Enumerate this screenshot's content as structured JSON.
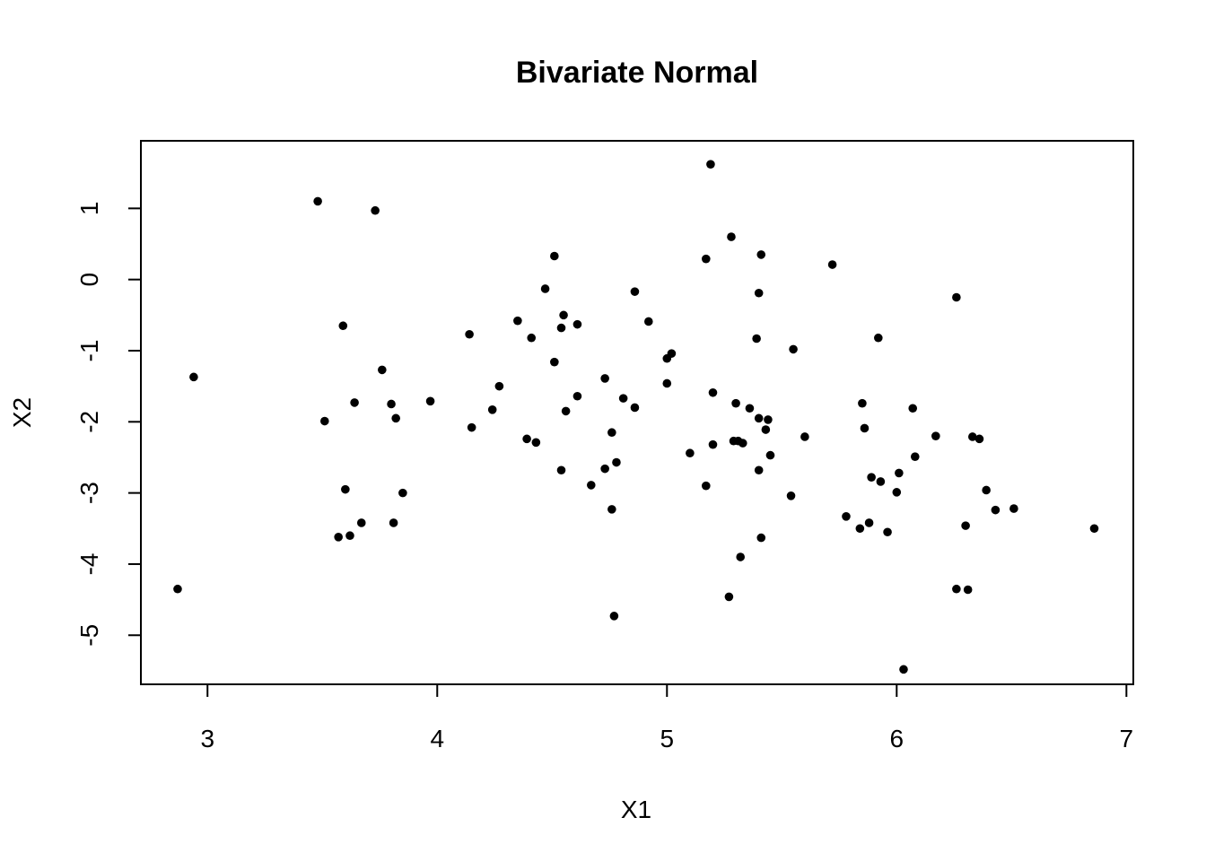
{
  "chart_data": {
    "type": "scatter",
    "title": "Bivariate Normal",
    "xlabel": "X1",
    "ylabel": "X2",
    "xlim": [
      2.71,
      7.03
    ],
    "ylim": [
      -5.69,
      1.95
    ],
    "x_ticks": [
      3,
      4,
      5,
      6,
      7
    ],
    "y_ticks": [
      1,
      0,
      -1,
      -2,
      -3,
      -4,
      -5
    ],
    "grid": false,
    "legend": "none",
    "marker_color": "#000000",
    "points": [
      [
        2.87,
        -4.35
      ],
      [
        2.94,
        -1.37
      ],
      [
        3.48,
        1.1
      ],
      [
        3.51,
        -1.99
      ],
      [
        3.57,
        -3.62
      ],
      [
        3.59,
        -0.65
      ],
      [
        3.6,
        -2.95
      ],
      [
        3.62,
        -3.6
      ],
      [
        3.64,
        -1.73
      ],
      [
        3.67,
        -3.42
      ],
      [
        3.73,
        0.97
      ],
      [
        3.76,
        -1.27
      ],
      [
        3.8,
        -1.75
      ],
      [
        3.81,
        -3.42
      ],
      [
        3.82,
        -1.95
      ],
      [
        3.85,
        -3.0
      ],
      [
        3.97,
        -1.71
      ],
      [
        4.14,
        -0.77
      ],
      [
        4.15,
        -2.08
      ],
      [
        4.24,
        -1.83
      ],
      [
        4.27,
        -1.5
      ],
      [
        4.35,
        -0.58
      ],
      [
        4.39,
        -2.24
      ],
      [
        4.41,
        -0.82
      ],
      [
        4.43,
        -2.29
      ],
      [
        4.47,
        -0.13
      ],
      [
        4.51,
        0.33
      ],
      [
        4.51,
        -1.16
      ],
      [
        4.54,
        -2.68
      ],
      [
        4.54,
        -0.68
      ],
      [
        4.55,
        -0.5
      ],
      [
        4.56,
        -1.85
      ],
      [
        4.61,
        -1.64
      ],
      [
        4.61,
        -0.63
      ],
      [
        4.67,
        -2.89
      ],
      [
        4.73,
        -1.39
      ],
      [
        4.73,
        -2.66
      ],
      [
        4.76,
        -2.15
      ],
      [
        4.76,
        -3.23
      ],
      [
        4.77,
        -4.73
      ],
      [
        4.78,
        -2.57
      ],
      [
        4.81,
        -1.67
      ],
      [
        4.86,
        -0.17
      ],
      [
        4.86,
        -1.8
      ],
      [
        4.92,
        -0.59
      ],
      [
        5.0,
        -1.11
      ],
      [
        5.0,
        -1.46
      ],
      [
        5.02,
        -1.04
      ],
      [
        5.1,
        -2.44
      ],
      [
        5.17,
        0.29
      ],
      [
        5.17,
        -2.9
      ],
      [
        5.19,
        1.62
      ],
      [
        5.2,
        -1.59
      ],
      [
        5.2,
        -2.32
      ],
      [
        5.27,
        -4.46
      ],
      [
        5.28,
        0.6
      ],
      [
        5.29,
        -2.27
      ],
      [
        5.3,
        -1.74
      ],
      [
        5.31,
        -2.27
      ],
      [
        5.32,
        -3.9
      ],
      [
        5.33,
        -2.3
      ],
      [
        5.36,
        -1.81
      ],
      [
        5.39,
        -0.83
      ],
      [
        5.4,
        -0.19
      ],
      [
        5.4,
        -1.95
      ],
      [
        5.4,
        -2.68
      ],
      [
        5.41,
        -3.63
      ],
      [
        5.41,
        0.35
      ],
      [
        5.43,
        -2.11
      ],
      [
        5.44,
        -1.97
      ],
      [
        5.45,
        -2.47
      ],
      [
        5.54,
        -3.04
      ],
      [
        5.55,
        -0.98
      ],
      [
        5.6,
        -2.21
      ],
      [
        5.72,
        0.21
      ],
      [
        5.78,
        -3.33
      ],
      [
        5.84,
        -3.5
      ],
      [
        5.85,
        -1.74
      ],
      [
        5.86,
        -2.09
      ],
      [
        5.88,
        -3.42
      ],
      [
        5.89,
        -2.78
      ],
      [
        5.92,
        -0.82
      ],
      [
        5.93,
        -2.84
      ],
      [
        5.96,
        -3.55
      ],
      [
        6.0,
        -2.99
      ],
      [
        6.01,
        -2.72
      ],
      [
        6.03,
        -5.48
      ],
      [
        6.07,
        -1.81
      ],
      [
        6.08,
        -2.49
      ],
      [
        6.17,
        -2.2
      ],
      [
        6.26,
        -0.25
      ],
      [
        6.26,
        -4.35
      ],
      [
        6.3,
        -3.46
      ],
      [
        6.31,
        -4.36
      ],
      [
        6.33,
        -2.21
      ],
      [
        6.36,
        -2.24
      ],
      [
        6.39,
        -2.96
      ],
      [
        6.43,
        -3.24
      ],
      [
        6.51,
        -3.22
      ],
      [
        6.86,
        -3.5
      ]
    ]
  }
}
